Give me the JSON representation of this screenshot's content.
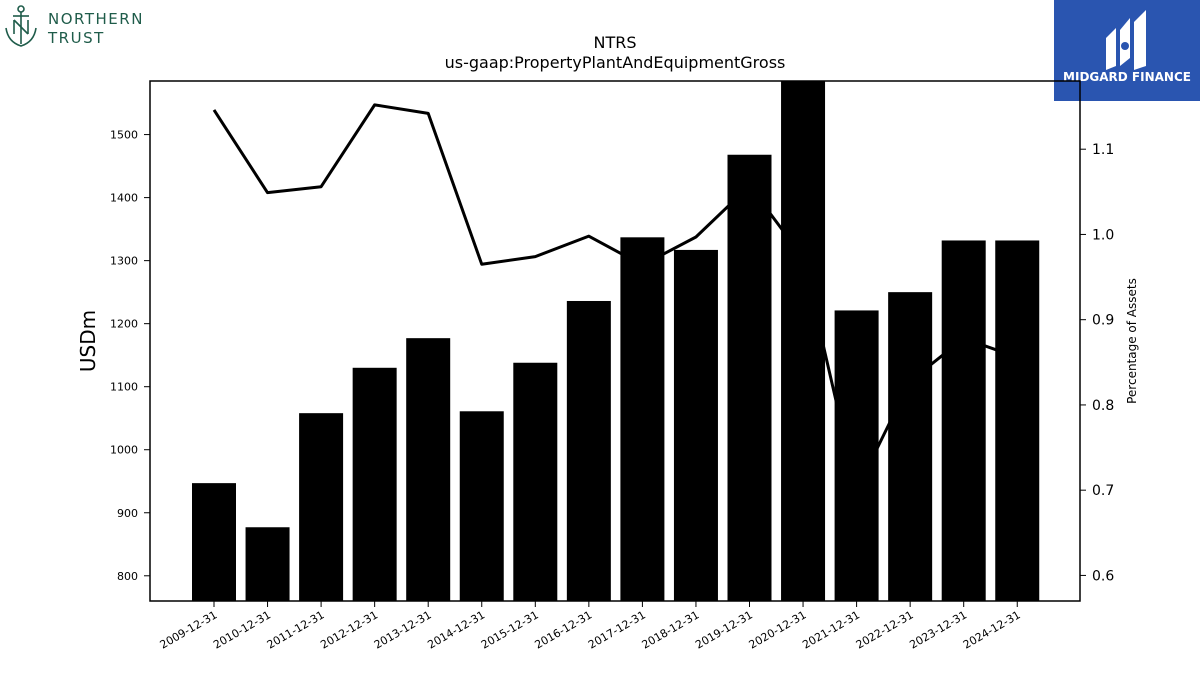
{
  "header": {
    "left_logo_text_line1": "NORTHERN",
    "left_logo_text_line2": "TRUST",
    "right_logo_text": "MIDGARD FINANCE"
  },
  "chart_data": {
    "type": "bar",
    "title": "NTRS",
    "subtitle": "us-gaap:PropertyPlantAndEquipmentGross",
    "ylabel": "USDm",
    "y2label": "Percentage of Assets",
    "ylim": [
      760,
      1585
    ],
    "y2lim": [
      0.57,
      1.18
    ],
    "yticks": [
      800,
      900,
      1000,
      1100,
      1200,
      1300,
      1400,
      1500
    ],
    "y2ticks": [
      "0.6",
      "0.7",
      "0.8",
      "0.9",
      "1.0",
      "1.1"
    ],
    "categories": [
      "2009-12-31",
      "2010-12-31",
      "2011-12-31",
      "2012-12-31",
      "2013-12-31",
      "2014-12-31",
      "2015-12-31",
      "2016-12-31",
      "2017-12-31",
      "2018-12-31",
      "2019-12-31",
      "2020-12-31",
      "2021-12-31",
      "2022-12-31",
      "2023-12-31",
      "2024-12-31"
    ],
    "series": [
      {
        "type": "bar",
        "axis": "left",
        "color": "#000000",
        "values": [
          947,
          877,
          1058,
          1130,
          1177,
          1061,
          1138,
          1236,
          1337,
          1317,
          1468,
          1590,
          1221,
          1250,
          1332,
          1332
        ]
      },
      {
        "type": "line",
        "axis": "right",
        "color": "#000000",
        "values": [
          1.146,
          1.049,
          1.056,
          1.152,
          1.142,
          0.965,
          0.974,
          0.998,
          0.964,
          0.997,
          1.057,
          0.973,
          0.7,
          0.828,
          0.878,
          0.856
        ]
      }
    ],
    "grid": false
  }
}
